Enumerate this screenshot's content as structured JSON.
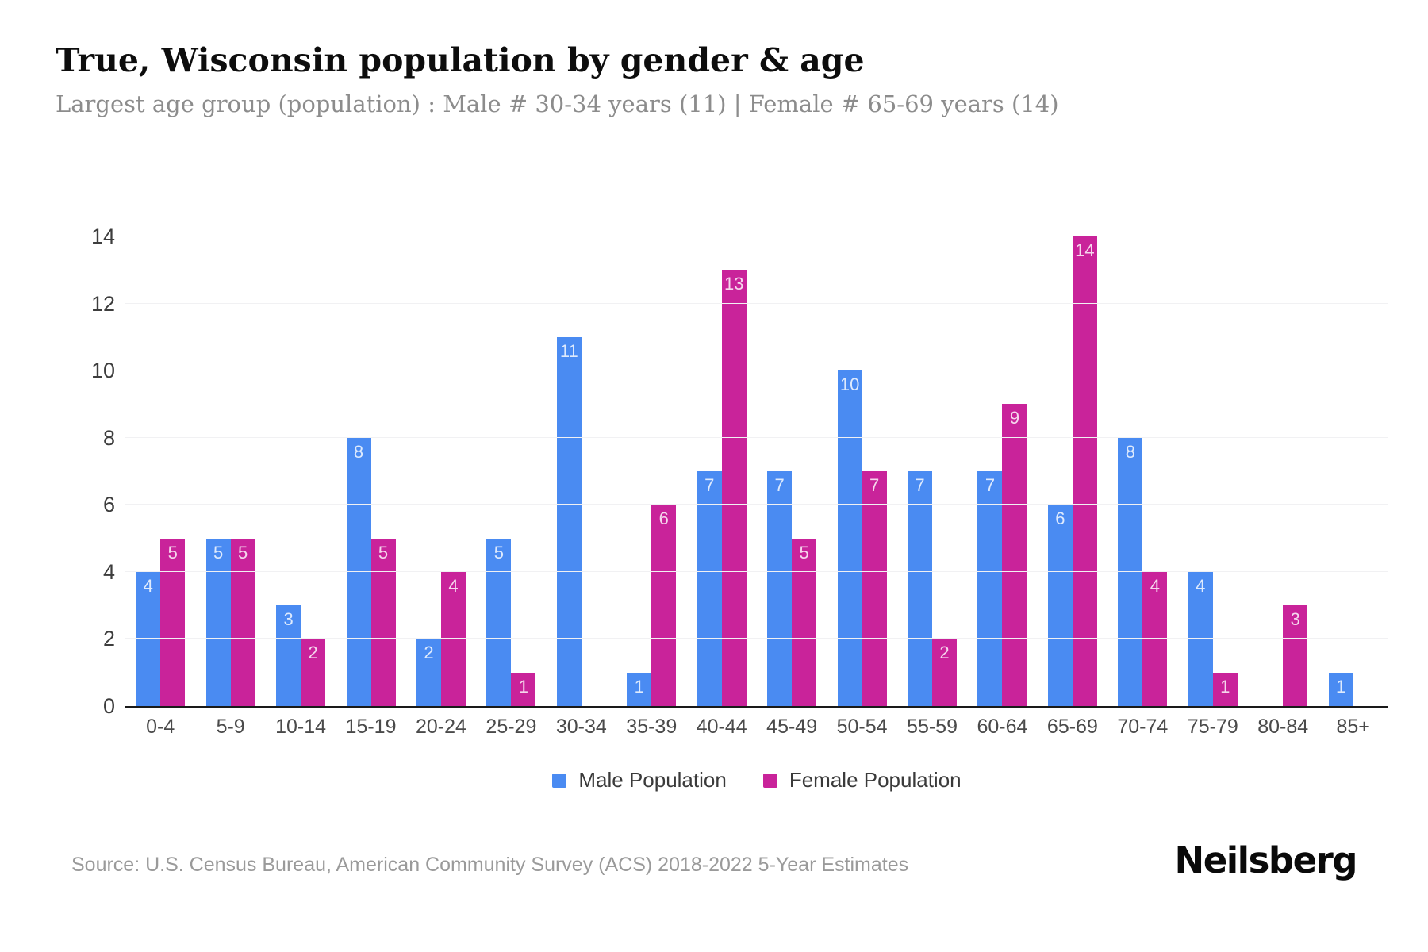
{
  "header": {
    "title": "True, Wisconsin population by gender & age",
    "subtitle": "Largest age group (population) : Male # 30-34 years (11) | Female # 65-69 years (14)"
  },
  "chart_data": {
    "type": "bar",
    "title": "True, Wisconsin population by gender & age",
    "categories": [
      "0-4",
      "5-9",
      "10-14",
      "15-19",
      "20-24",
      "25-29",
      "30-34",
      "35-39",
      "40-44",
      "45-49",
      "50-54",
      "55-59",
      "60-64",
      "65-69",
      "70-74",
      "75-79",
      "80-84",
      "85+"
    ],
    "series": [
      {
        "name": "Male Population",
        "color": "#4a8bf2",
        "values": [
          4,
          5,
          3,
          8,
          2,
          5,
          11,
          1,
          7,
          7,
          10,
          7,
          7,
          6,
          8,
          4,
          0,
          1
        ]
      },
      {
        "name": "Female Population",
        "color": "#c9239a",
        "values": [
          5,
          5,
          2,
          5,
          4,
          1,
          0,
          6,
          13,
          5,
          7,
          2,
          9,
          14,
          4,
          1,
          3,
          0
        ]
      }
    ],
    "xlabel": "",
    "ylabel": "",
    "ylim": [
      0,
      14
    ],
    "yticks": [
      0,
      2,
      4,
      6,
      8,
      10,
      12,
      14
    ],
    "grid": true,
    "legend_position": "bottom",
    "value_label_style": "inside-top-white"
  },
  "legend": {
    "items": [
      {
        "label": "Male Population",
        "color": "#4a8bf2"
      },
      {
        "label": "Female Population",
        "color": "#c9239a"
      }
    ]
  },
  "footer": {
    "source": "Source: U.S. Census Bureau, American Community Survey (ACS) 2018-2022 5-Year Estimates",
    "brand": "Neilsberg"
  }
}
